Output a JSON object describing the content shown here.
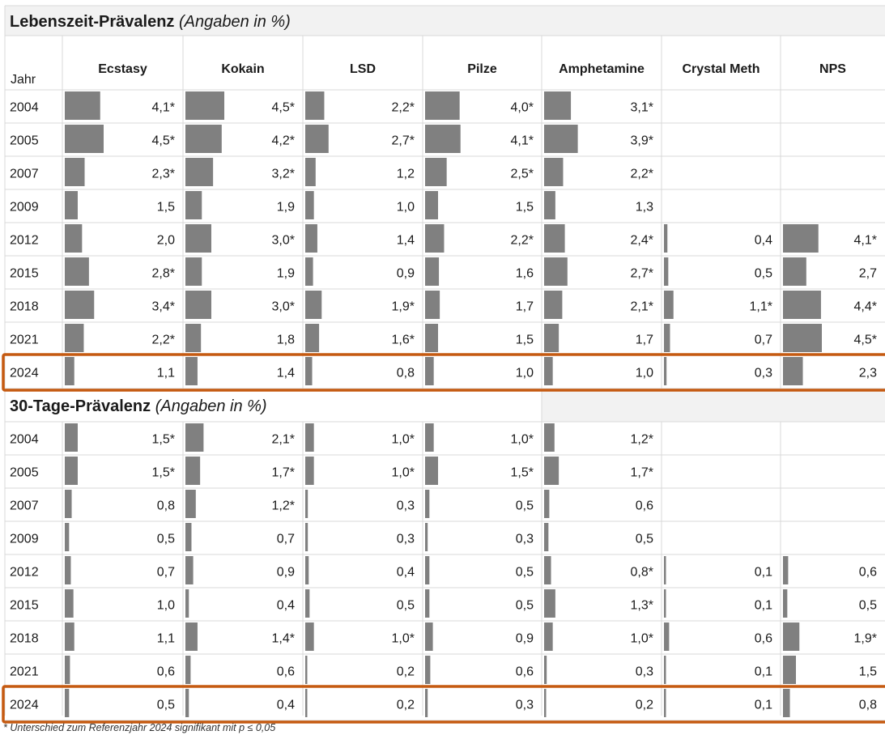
{
  "chart_data": {
    "type": "table",
    "columns": [
      "Ecstasy",
      "Kokain",
      "LSD",
      "Pilze",
      "Amphetamine",
      "Crystal Meth",
      "NPS"
    ],
    "year_header": "Jahr",
    "sections": [
      {
        "title": "Lebenszeit-Prävalenz",
        "subtitle": "(Angaben in %)",
        "highlight_year": "2024",
        "rows": [
          {
            "year": "2004",
            "values": [
              "4,1*",
              "4,5*",
              "2,2*",
              "4,0*",
              "3,1*",
              null,
              null
            ]
          },
          {
            "year": "2005",
            "values": [
              "4,5*",
              "4,2*",
              "2,7*",
              "4,1*",
              "3,9*",
              null,
              null
            ]
          },
          {
            "year": "2007",
            "values": [
              "2,3*",
              "3,2*",
              "1,2",
              "2,5*",
              "2,2*",
              null,
              null
            ]
          },
          {
            "year": "2009",
            "values": [
              "1,5",
              "1,9",
              "1,0",
              "1,5",
              "1,3",
              null,
              null
            ]
          },
          {
            "year": "2012",
            "values": [
              "2,0",
              "3,0*",
              "1,4",
              "2,2*",
              "2,4*",
              "0,4",
              "4,1*"
            ]
          },
          {
            "year": "2015",
            "values": [
              "2,8*",
              "1,9",
              "0,9",
              "1,6",
              "2,7*",
              "0,5",
              "2,7"
            ]
          },
          {
            "year": "2018",
            "values": [
              "3,4*",
              "3,0*",
              "1,9*",
              "1,7",
              "2,1*",
              "1,1*",
              "4,4*"
            ]
          },
          {
            "year": "2021",
            "values": [
              "2,2*",
              "1,8",
              "1,6*",
              "1,5",
              "1,7",
              "0,7",
              "4,5*"
            ]
          },
          {
            "year": "2024",
            "values": [
              "1,1",
              "1,4",
              "0,8",
              "1,0",
              "1,0",
              "0,3",
              "2,3"
            ]
          }
        ]
      },
      {
        "title": "30-Tage-Prävalenz",
        "subtitle": "(Angaben in %)",
        "highlight_year": "2024",
        "rows": [
          {
            "year": "2004",
            "values": [
              "1,5*",
              "2,1*",
              "1,0*",
              "1,0*",
              "1,2*",
              null,
              null
            ]
          },
          {
            "year": "2005",
            "values": [
              "1,5*",
              "1,7*",
              "1,0*",
              "1,5*",
              "1,7*",
              null,
              null
            ]
          },
          {
            "year": "2007",
            "values": [
              "0,8",
              "1,2*",
              "0,3",
              "0,5",
              "0,6",
              null,
              null
            ]
          },
          {
            "year": "2009",
            "values": [
              "0,5",
              "0,7",
              "0,3",
              "0,3",
              "0,5",
              null,
              null
            ]
          },
          {
            "year": "2012",
            "values": [
              "0,7",
              "0,9",
              "0,4",
              "0,5",
              "0,8*",
              "0,1",
              "0,6"
            ]
          },
          {
            "year": "2015",
            "values": [
              "1,0",
              "0,4",
              "0,5",
              "0,5",
              "1,3*",
              "0,1",
              "0,5"
            ]
          },
          {
            "year": "2018",
            "values": [
              "1,1",
              "1,4*",
              "1,0*",
              "0,9",
              "1,0*",
              "0,6",
              "1,9*"
            ]
          },
          {
            "year": "2021",
            "values": [
              "0,6",
              "0,6",
              "0,2",
              "0,6",
              "0,3",
              "0,1",
              "1,5"
            ]
          },
          {
            "year": "2024",
            "values": [
              "0,5",
              "0,4",
              "0,2",
              "0,3",
              "0,2",
              "0,1",
              "0,8"
            ]
          }
        ]
      }
    ],
    "bar_scale_max": 4.5,
    "colors": {
      "bar": "#808080",
      "highlight": "#c55a11",
      "section_bg": "#f2f2f2",
      "grid": "#d9d9d9"
    },
    "footnote": "* Unterschied zum Referenzjahr 2024 signifikant mit p ≤ 0,05"
  }
}
